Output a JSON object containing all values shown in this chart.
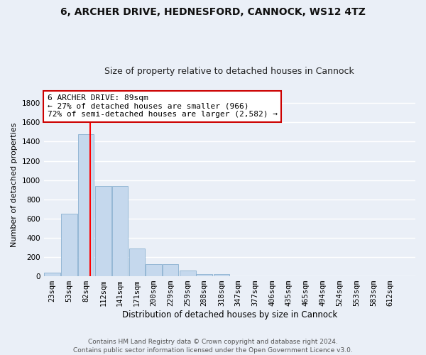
{
  "title_line1": "6, ARCHER DRIVE, HEDNESFORD, CANNOCK, WS12 4TZ",
  "title_line2": "Size of property relative to detached houses in Cannock",
  "xlabel": "Distribution of detached houses by size in Cannock",
  "ylabel": "Number of detached properties",
  "annotation_title": "6 ARCHER DRIVE: 89sqm",
  "annotation_line1": "← 27% of detached houses are smaller (966)",
  "annotation_line2": "72% of semi-detached houses are larger (2,582) →",
  "footer_line1": "Contains HM Land Registry data © Crown copyright and database right 2024.",
  "footer_line2": "Contains public sector information licensed under the Open Government Licence v3.0.",
  "bar_color": "#c5d8ed",
  "bar_edge_color": "#8ab0d0",
  "red_line_x": 89,
  "categories": [
    "23sqm",
    "53sqm",
    "82sqm",
    "112sqm",
    "141sqm",
    "171sqm",
    "200sqm",
    "229sqm",
    "259sqm",
    "288sqm",
    "318sqm",
    "347sqm",
    "377sqm",
    "406sqm",
    "435sqm",
    "465sqm",
    "494sqm",
    "524sqm",
    "553sqm",
    "583sqm",
    "612sqm"
  ],
  "bin_left": [
    8,
    38,
    67,
    97,
    126,
    156,
    185,
    214,
    244,
    273,
    303,
    332,
    362,
    391,
    420,
    450,
    479,
    509,
    538,
    568,
    597
  ],
  "values": [
    38,
    650,
    1475,
    935,
    935,
    290,
    125,
    125,
    60,
    25,
    20,
    0,
    0,
    0,
    0,
    0,
    0,
    0,
    0,
    0,
    0
  ],
  "ylim": [
    0,
    1900
  ],
  "yticks": [
    0,
    200,
    400,
    600,
    800,
    1000,
    1200,
    1400,
    1600,
    1800
  ],
  "bg_color": "#eaeff7",
  "grid_color": "#ffffff",
  "annotation_box_color": "#ffffff",
  "annotation_box_edge": "#cc0000",
  "title1_fontsize": 10,
  "title2_fontsize": 9,
  "xlabel_fontsize": 8.5,
  "ylabel_fontsize": 8,
  "tick_fontsize": 7.5,
  "annotation_fontsize": 8,
  "footer_fontsize": 6.5
}
